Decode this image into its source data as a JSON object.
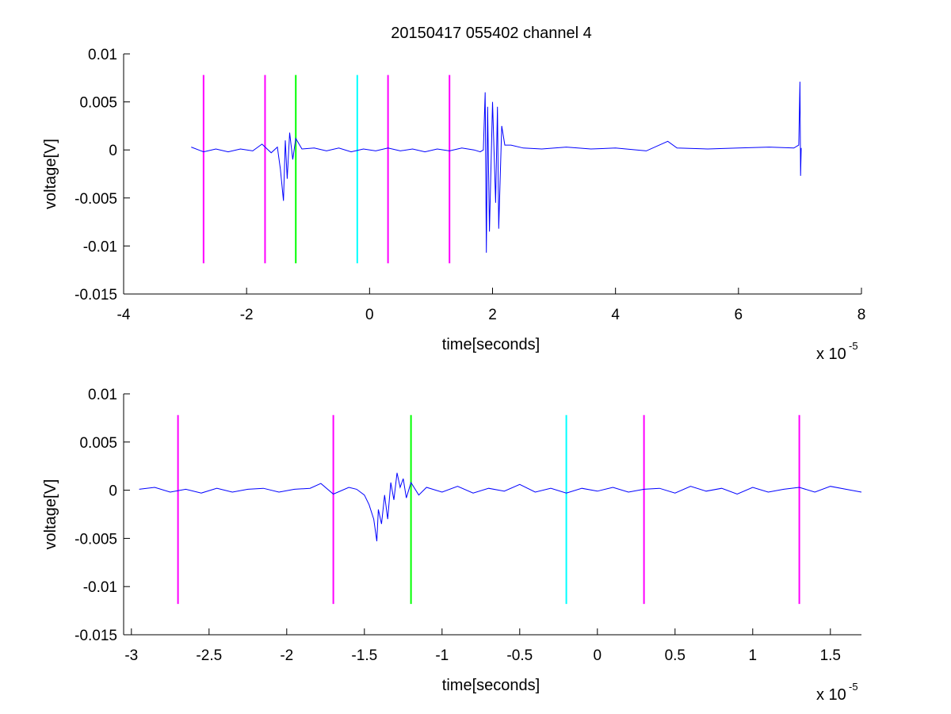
{
  "figure": {
    "title": "20150417 055402 channel 4"
  },
  "chart_data": [
    {
      "type": "line",
      "title": "20150417 055402 channel 4",
      "xlabel": "time[seconds]",
      "ylabel": "voltage[V]",
      "x_scale_label": "x 10",
      "x_scale_exponent": "-5",
      "xlim": [
        -4,
        8
      ],
      "ylim": [
        -0.015,
        0.01
      ],
      "xticks": [
        -4,
        -2,
        0,
        2,
        4,
        6,
        8
      ],
      "xtick_labels": [
        "-4",
        "-2",
        "0",
        "2",
        "4",
        "6",
        "8"
      ],
      "yticks": [
        -0.015,
        -0.01,
        -0.005,
        0,
        0.005,
        0.01
      ],
      "ytick_labels": [
        "-0.015",
        "-0.01",
        "-0.005",
        "0",
        "0.005",
        "0.01"
      ],
      "markers": [
        {
          "x": -2.7,
          "y_range": [
            -0.0118,
            0.0078
          ],
          "color": "#ff00ff"
        },
        {
          "x": -1.7,
          "y_range": [
            -0.0118,
            0.0078
          ],
          "color": "#ff00ff"
        },
        {
          "x": -1.2,
          "y_range": [
            -0.0118,
            0.0078
          ],
          "color": "#00ff00"
        },
        {
          "x": -0.2,
          "y_range": [
            -0.0118,
            0.0078
          ],
          "color": "#00ffff"
        },
        {
          "x": 0.3,
          "y_range": [
            -0.0118,
            0.0078
          ],
          "color": "#ff00ff"
        },
        {
          "x": 1.3,
          "y_range": [
            -0.0118,
            0.0078
          ],
          "color": "#ff00ff"
        }
      ],
      "series": [
        {
          "color": "#0000ff",
          "x": [
            -2.9,
            -2.7,
            -2.5,
            -2.3,
            -2.1,
            -1.9,
            -1.75,
            -1.6,
            -1.5,
            -1.45,
            -1.4,
            -1.37,
            -1.34,
            -1.3,
            -1.25,
            -1.2,
            -1.1,
            -0.9,
            -0.7,
            -0.5,
            -0.3,
            -0.1,
            0.1,
            0.3,
            0.5,
            0.7,
            0.9,
            1.1,
            1.3,
            1.5,
            1.7,
            1.8,
            1.85,
            1.88,
            1.9,
            1.92,
            1.95,
            2.0,
            2.05,
            2.08,
            2.1,
            2.15,
            2.2,
            2.3,
            2.5,
            2.8,
            3.2,
            3.6,
            4.0,
            4.5,
            4.85,
            5.0,
            5.5,
            6.0,
            6.5,
            6.9,
            6.98,
            7.0,
            7.01,
            7.02
          ],
          "y": [
            0.0003,
            -0.0002,
            0.0001,
            -0.0002,
            0.0001,
            -0.0001,
            0.0006,
            -0.0003,
            0.0003,
            -0.002,
            -0.0053,
            0.001,
            -0.003,
            0.0018,
            -0.001,
            0.0012,
            0.0001,
            0.0002,
            -0.0001,
            0.0002,
            -0.0002,
            0.0001,
            -0.0001,
            0.0002,
            -0.0001,
            0.0001,
            -0.0002,
            0.0001,
            -0.0001,
            0.0002,
            0.0,
            -0.0002,
            0.0,
            0.006,
            -0.0107,
            0.0045,
            -0.0085,
            0.005,
            -0.0055,
            0.0045,
            -0.0082,
            0.0025,
            0.0005,
            0.0005,
            0.0002,
            0.0001,
            0.0003,
            0.0001,
            0.0002,
            -0.0001,
            0.0009,
            0.0002,
            0.0001,
            0.0002,
            0.0003,
            0.0002,
            0.0005,
            0.0071,
            -0.0027,
            0.0002
          ]
        }
      ]
    },
    {
      "type": "line",
      "title": "",
      "xlabel": "time[seconds]",
      "ylabel": "voltage[V]",
      "x_scale_label": "x 10",
      "x_scale_exponent": "-5",
      "xlim": [
        -3.05,
        1.7
      ],
      "ylim": [
        -0.015,
        0.01
      ],
      "xticks": [
        -3,
        -2.5,
        -2,
        -1.5,
        -1,
        -0.5,
        0,
        0.5,
        1,
        1.5
      ],
      "xtick_labels": [
        "-3",
        "-2.5",
        "-2",
        "-1.5",
        "-1",
        "-0.5",
        "0",
        "0.5",
        "1",
        "1.5"
      ],
      "yticks": [
        -0.015,
        -0.01,
        -0.005,
        0,
        0.005,
        0.01
      ],
      "ytick_labels": [
        "-0.015",
        "-0.01",
        "-0.005",
        "0",
        "0.005",
        "0.01"
      ],
      "markers": [
        {
          "x": -2.7,
          "y_range": [
            -0.0118,
            0.0078
          ],
          "color": "#ff00ff"
        },
        {
          "x": -1.7,
          "y_range": [
            -0.0118,
            0.0078
          ],
          "color": "#ff00ff"
        },
        {
          "x": -1.2,
          "y_range": [
            -0.0118,
            0.0078
          ],
          "color": "#00ff00"
        },
        {
          "x": -0.2,
          "y_range": [
            -0.0118,
            0.0078
          ],
          "color": "#00ffff"
        },
        {
          "x": 0.3,
          "y_range": [
            -0.0118,
            0.0078
          ],
          "color": "#ff00ff"
        },
        {
          "x": 1.3,
          "y_range": [
            -0.0118,
            0.0078
          ],
          "color": "#ff00ff"
        }
      ],
      "series": [
        {
          "color": "#0000ff",
          "x": [
            -2.95,
            -2.85,
            -2.75,
            -2.65,
            -2.55,
            -2.45,
            -2.35,
            -2.25,
            -2.15,
            -2.05,
            -1.95,
            -1.85,
            -1.78,
            -1.7,
            -1.6,
            -1.55,
            -1.5,
            -1.47,
            -1.44,
            -1.42,
            -1.41,
            -1.39,
            -1.37,
            -1.35,
            -1.33,
            -1.31,
            -1.29,
            -1.27,
            -1.25,
            -1.23,
            -1.2,
            -1.15,
            -1.1,
            -1.0,
            -0.9,
            -0.8,
            -0.7,
            -0.6,
            -0.5,
            -0.4,
            -0.3,
            -0.2,
            -0.1,
            0.0,
            0.1,
            0.2,
            0.3,
            0.4,
            0.5,
            0.6,
            0.7,
            0.8,
            0.9,
            1.0,
            1.1,
            1.2,
            1.3,
            1.4,
            1.5,
            1.6,
            1.7
          ],
          "y": [
            0.0001,
            0.0003,
            -0.0002,
            0.0001,
            -0.0003,
            0.0002,
            -0.0002,
            0.0001,
            0.0002,
            -0.0002,
            0.0001,
            0.0002,
            0.0007,
            -0.0004,
            0.0003,
            0.0001,
            -0.0005,
            -0.0015,
            -0.003,
            -0.0053,
            -0.002,
            -0.0035,
            -0.0005,
            -0.003,
            0.0008,
            -0.001,
            0.0018,
            0.0003,
            0.0012,
            -0.0008,
            0.0008,
            -0.0005,
            0.0003,
            -0.0002,
            0.0004,
            -0.0003,
            0.0002,
            -0.0001,
            0.0006,
            -0.0002,
            0.0002,
            -0.0003,
            0.0002,
            -0.0001,
            0.0003,
            -0.0002,
            0.0001,
            0.0002,
            -0.0003,
            0.0004,
            -0.0001,
            0.0002,
            -0.0004,
            0.0003,
            -0.0002,
            0.0001,
            0.0003,
            -0.0002,
            0.0004,
            0.0001,
            -0.0002
          ]
        }
      ]
    }
  ]
}
